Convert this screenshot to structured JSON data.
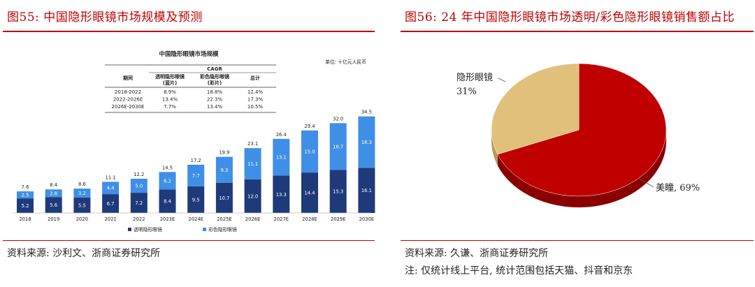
{
  "left": {
    "figure_title": "图55:  中国隐形眼镜市场规模及预测",
    "source": "资料来源:  沙利文、浙商证券研究所"
  },
  "right": {
    "figure_title": "图56:  24 年中国隐形眼镜市场透明/彩色隐形眼镜销售额占比",
    "source": "资料来源:  久谦、浙商证券研究所",
    "note": "注:  仅统计线上平台, 统计范围包括天猫、抖音和京东"
  },
  "chart_data": [
    {
      "type": "bar",
      "stacked": true,
      "title": "中国隐形眼镜市场规模",
      "unit": "单位:  十亿元人民币",
      "categories": [
        "2018",
        "2019",
        "2020",
        "2021",
        "2022",
        "2023E",
        "2024E",
        "2025E",
        "2026E",
        "2027E",
        "2028E",
        "2029E",
        "2030E"
      ],
      "series": [
        {
          "name": "透明隐形眼镜",
          "color": "#1f3a7a",
          "values": [
            5.2,
            5.6,
            5.5,
            6.7,
            7.2,
            8.4,
            9.5,
            10.7,
            12.0,
            13.3,
            14.4,
            15.3,
            16.1
          ]
        },
        {
          "name": "彩色隐形眼镜",
          "color": "#3f8fe6",
          "values": [
            2.5,
            2.8,
            3.2,
            4.4,
            5.0,
            6.2,
            7.7,
            9.3,
            11.1,
            13.1,
            15.0,
            16.7,
            18.3
          ]
        }
      ],
      "totals": [
        7.6,
        8.4,
        8.6,
        11.1,
        12.2,
        14.5,
        17.2,
        19.9,
        23.1,
        26.4,
        29.4,
        32.0,
        34.5
      ],
      "ylim": [
        0,
        36
      ],
      "grid": false,
      "legend": "bottom",
      "cagr_table": {
        "group_header": "CAGR",
        "headers": [
          "期间",
          "透明隐形眼镜\n(蓝片)",
          "彩色隐形眼镜\n(彩片)",
          "总计"
        ],
        "rows": [
          [
            "2018-2022",
            "8.9%",
            "18.8%",
            "12.4%"
          ],
          [
            "2022-2026E",
            "13.4%",
            "22.3%",
            "17.3%"
          ],
          [
            "2026E-2030E",
            "7.7%",
            "13.4%",
            "10.5%"
          ]
        ]
      }
    },
    {
      "type": "pie",
      "labels": [
        "美瞳",
        "隐形眼镜"
      ],
      "values": [
        69,
        31
      ],
      "label_text": [
        "美瞳, 69%",
        "隐形眼镜\n31%"
      ],
      "colors": [
        "#c00000",
        "#e0c07a"
      ],
      "side_colors": [
        "#8a0000",
        "#b89a55"
      ]
    }
  ]
}
